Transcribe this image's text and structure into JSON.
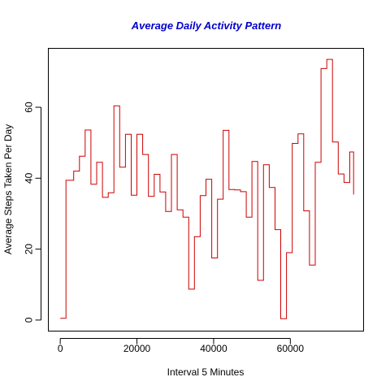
{
  "chart_data": {
    "type": "line",
    "style": "step",
    "title": "Average Daily Activity Pattern",
    "title_color": "#0000CC",
    "xlabel": "Interval 5 Minutes",
    "ylabel": "Average Steps Taken Per Day",
    "xlim": [
      -3000,
      79000
    ],
    "ylim": [
      -3,
      76.5
    ],
    "x_ticks": [
      0,
      20000,
      40000,
      60000
    ],
    "x_tick_labels": [
      "0",
      "20000",
      "40000",
      "60000"
    ],
    "y_ticks": [
      0,
      20,
      40,
      60
    ],
    "y_tick_labels": [
      "0",
      "20",
      "40",
      "60"
    ],
    "grid": false,
    "legend": "none",
    "series": [
      {
        "color": "#CC0000",
        "x": [
          0,
          1500,
          3500,
          5000,
          6500,
          8000,
          9500,
          11000,
          12500,
          14000,
          15500,
          17000,
          18500,
          20000,
          21500,
          23000,
          24500,
          26000,
          27500,
          29000,
          30500,
          32000,
          33500,
          35000,
          36500,
          38000,
          39500,
          41000,
          42500,
          44000,
          45500,
          47000,
          48500,
          50000,
          51500,
          53000,
          54500,
          56000,
          57500,
          59000,
          60500,
          62000,
          63500,
          65000,
          66500,
          68000,
          69500,
          71000,
          72500,
          74000,
          75500,
          76500
        ],
        "y": [
          0.5,
          39.4,
          42.0,
          46.2,
          53.6,
          38.3,
          44.5,
          34.6,
          35.9,
          60.4,
          43.1,
          52.4,
          35.2,
          52.4,
          46.7,
          34.9,
          41.1,
          36.1,
          30.6,
          46.7,
          31.1,
          29.0,
          8.7,
          23.5,
          35.1,
          39.7,
          17.5,
          34.1,
          53.5,
          36.8,
          36.7,
          36.2,
          29.0,
          44.7,
          11.2,
          43.8,
          37.4,
          25.5,
          0.4,
          19.0,
          49.8,
          52.5,
          30.8,
          15.5,
          44.5,
          70.9,
          73.5,
          50.2,
          41.2,
          38.8,
          47.4,
          35.4
        ]
      }
    ]
  }
}
